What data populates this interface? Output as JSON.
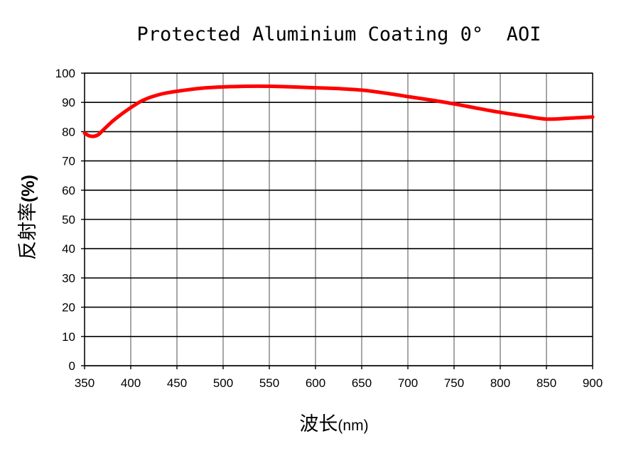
{
  "chart_data": {
    "type": "line",
    "title": "Protected Aluminium Coating 0°  AOI",
    "xlabel_cjk": "波长",
    "xlabel_unit": "(nm)",
    "ylabel_cjk": "反射率",
    "ylabel_unit": "(%)",
    "xlim": [
      350,
      900
    ],
    "ylim": [
      0,
      100
    ],
    "xticks": [
      350,
      400,
      450,
      500,
      550,
      600,
      650,
      700,
      750,
      800,
      850,
      900
    ],
    "yticks": [
      0,
      10,
      20,
      30,
      40,
      50,
      60,
      70,
      80,
      90,
      100
    ],
    "grid": true,
    "legend": "none",
    "colors": {
      "series": "#ff0000",
      "grid_major": "#000000",
      "grid_minor": "#8a8a8a"
    },
    "series": [
      {
        "color": "#ff0000",
        "x": [
          350,
          355,
          360,
          365,
          370,
          380,
          390,
          400,
          410,
          420,
          430,
          440,
          450,
          475,
          500,
          525,
          550,
          575,
          600,
          625,
          650,
          675,
          700,
          725,
          750,
          775,
          800,
          825,
          850,
          875,
          900
        ],
        "y": [
          79.5,
          78.6,
          78.4,
          79.0,
          80.5,
          83.5,
          86.0,
          88.2,
          90.2,
          91.6,
          92.6,
          93.3,
          93.8,
          94.8,
          95.3,
          95.5,
          95.5,
          95.3,
          95.0,
          94.7,
          94.2,
          93.2,
          92.0,
          90.8,
          89.5,
          88.0,
          86.6,
          85.4,
          84.3,
          84.6,
          85.0
        ]
      }
    ]
  }
}
